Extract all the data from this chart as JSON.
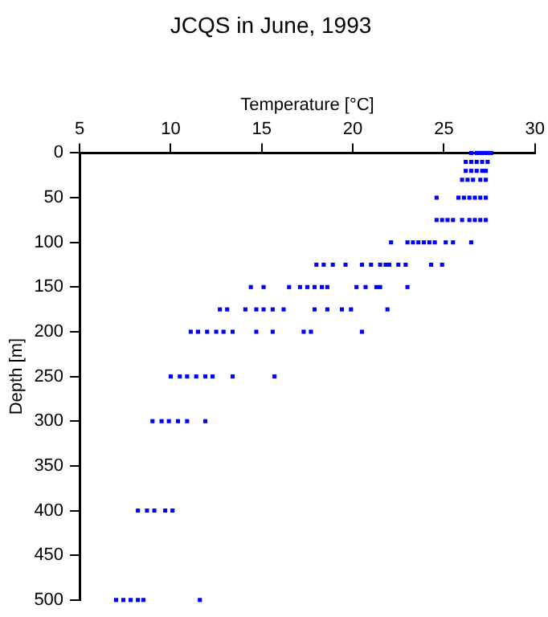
{
  "chart_data": {
    "type": "scatter",
    "title": "JCQS in June, 1993",
    "xlabel": "Temperature [°C]",
    "ylabel": "Depth [m]",
    "xlim": [
      5,
      30
    ],
    "xticks": [
      5,
      10,
      15,
      20,
      25,
      30
    ],
    "ylim": [
      500,
      0
    ],
    "yticks": [
      0,
      50,
      100,
      150,
      200,
      250,
      300,
      350,
      400,
      450,
      500
    ],
    "marker": "square",
    "series": [
      {
        "color": "#0000ff",
        "x": [
          26.5,
          26.8,
          27.0,
          27.2,
          27.4,
          27.6,
          26.2,
          26.5,
          26.8,
          27.1,
          27.4,
          26.2,
          26.5,
          26.8,
          27.1,
          27.3,
          26.0,
          26.3,
          26.6,
          27.0,
          27.3,
          24.6,
          25.8,
          26.1,
          26.4,
          26.7,
          27.0,
          27.3,
          24.6,
          24.9,
          25.2,
          25.5,
          26.0,
          26.4,
          26.7,
          27.0,
          27.3,
          22.1,
          23.0,
          23.3,
          23.6,
          23.9,
          24.2,
          24.5,
          25.1,
          25.5,
          26.5,
          18.0,
          18.4,
          18.9,
          19.6,
          20.5,
          21.0,
          21.5,
          21.8,
          22.0,
          22.5,
          22.9,
          24.3,
          24.9,
          14.4,
          15.1,
          16.5,
          17.1,
          17.5,
          17.9,
          18.3,
          18.6,
          20.2,
          20.7,
          21.3,
          21.5,
          23.0,
          12.7,
          13.1,
          14.1,
          14.7,
          15.1,
          15.6,
          16.2,
          17.9,
          18.6,
          19.4,
          19.9,
          21.9,
          11.1,
          11.5,
          12.0,
          12.5,
          12.9,
          13.4,
          14.7,
          15.6,
          17.3,
          17.7,
          20.5,
          10.0,
          10.5,
          10.9,
          11.4,
          11.9,
          12.3,
          13.4,
          15.7,
          9.0,
          9.5,
          9.9,
          10.4,
          10.9,
          11.9,
          8.2,
          8.7,
          9.1,
          9.7,
          10.1,
          7.0,
          7.4,
          7.8,
          8.2,
          8.5,
          11.6
        ],
        "values": [
          0,
          0,
          0,
          0,
          0,
          0,
          10,
          10,
          10,
          10,
          10,
          20,
          20,
          20,
          20,
          20,
          30,
          30,
          30,
          30,
          30,
          50,
          50,
          50,
          50,
          50,
          50,
          50,
          75,
          75,
          75,
          75,
          75,
          75,
          75,
          75,
          75,
          100,
          100,
          100,
          100,
          100,
          100,
          100,
          100,
          100,
          100,
          125,
          125,
          125,
          125,
          125,
          125,
          125,
          125,
          125,
          125,
          125,
          125,
          125,
          150,
          150,
          150,
          150,
          150,
          150,
          150,
          150,
          150,
          150,
          150,
          150,
          150,
          175,
          175,
          175,
          175,
          175,
          175,
          175,
          175,
          175,
          175,
          175,
          175,
          200,
          200,
          200,
          200,
          200,
          200,
          200,
          200,
          200,
          200,
          200,
          250,
          250,
          250,
          250,
          250,
          250,
          250,
          250,
          300,
          300,
          300,
          300,
          300,
          300,
          400,
          400,
          400,
          400,
          400,
          500,
          500,
          500,
          500,
          500,
          500
        ]
      }
    ]
  }
}
